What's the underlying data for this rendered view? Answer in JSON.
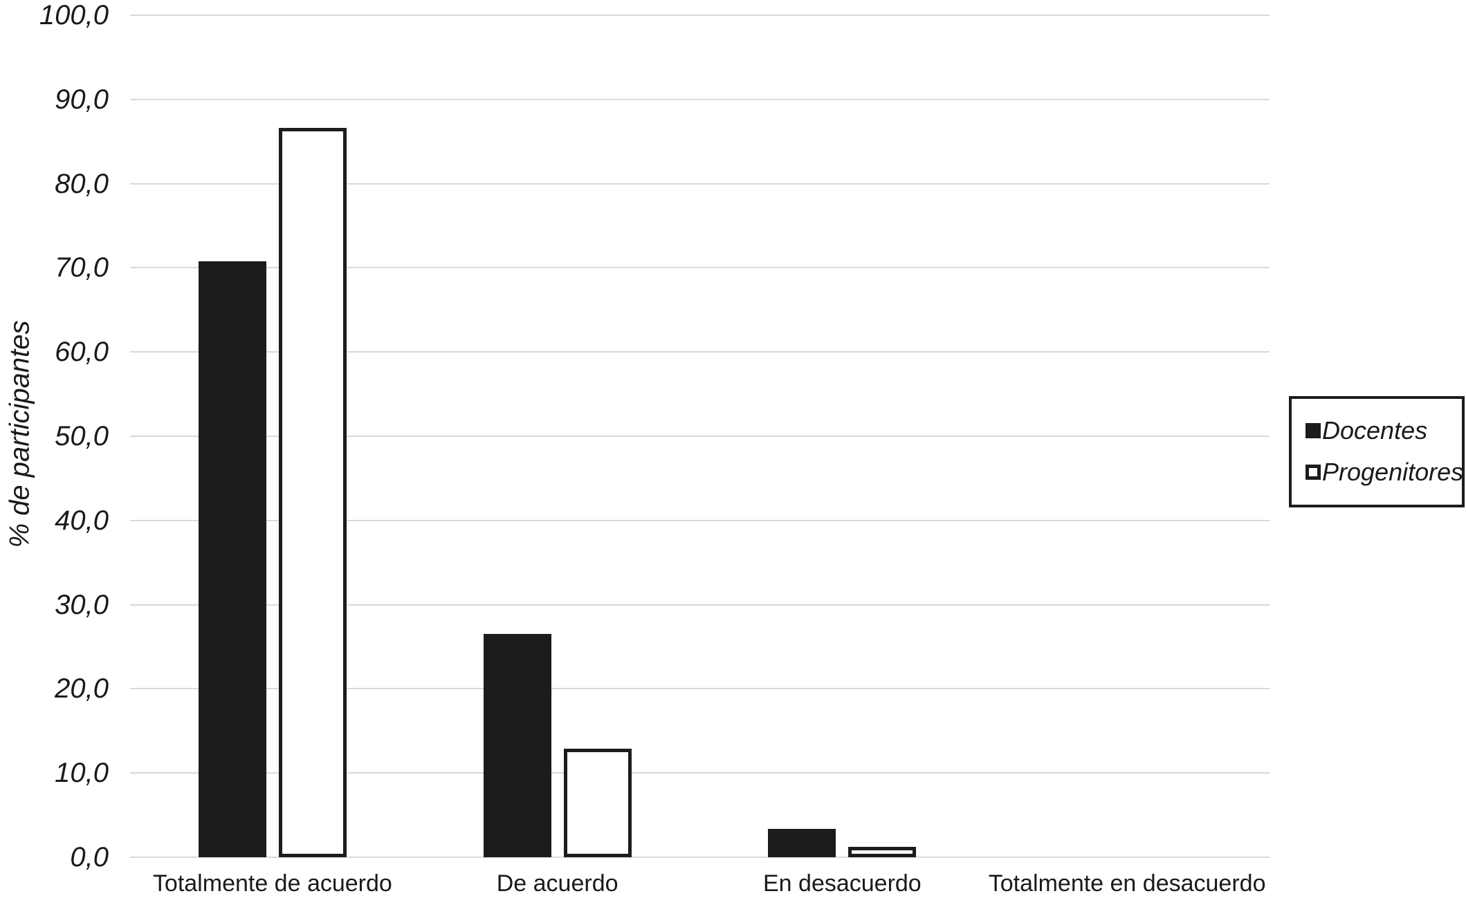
{
  "chart_data": {
    "type": "bar",
    "title": "",
    "xlabel": "",
    "ylabel": "% de participantes",
    "categories": [
      "Totalmente de acuerdo",
      "De acuerdo",
      "En desacuerdo",
      "Totalmente en desacuerdo"
    ],
    "series": [
      {
        "name": "Docentes",
        "style": "filled",
        "values": [
          70.8,
          26.5,
          3.4,
          0.0
        ]
      },
      {
        "name": "Progenitores",
        "style": "outlined",
        "values": [
          86.6,
          12.9,
          1.2,
          0.0
        ]
      }
    ],
    "ylim": [
      0,
      100
    ],
    "ytick_step": 10,
    "ytick_labels": [
      "0,0",
      "10,0",
      "20,0",
      "30,0",
      "40,0",
      "50,0",
      "60,0",
      "70,0",
      "80,0",
      "90,0",
      "100,0"
    ],
    "grid": true,
    "legend_position": "right",
    "colors": {
      "bar_fill": "#1c1c1c",
      "bar_outline": "#1c1c1c",
      "gridline": "#d9d9d9",
      "text": "#1a1a1a",
      "background": "#ffffff"
    }
  }
}
